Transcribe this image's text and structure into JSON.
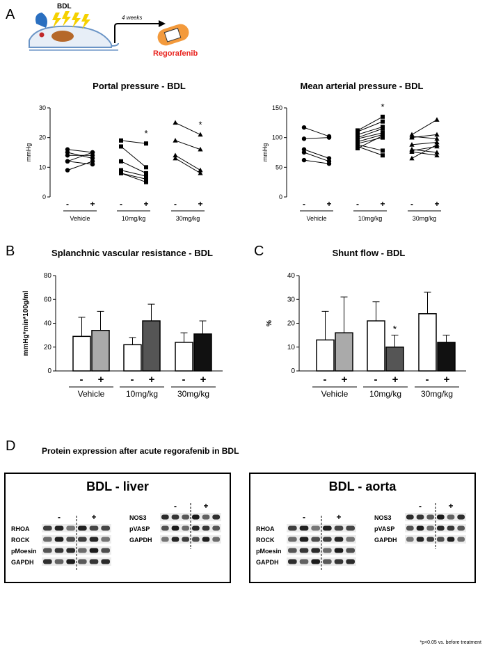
{
  "panels": {
    "a": "A",
    "b": "B",
    "c": "C",
    "d": "D"
  },
  "schematic": {
    "model_label": "BDL",
    "interval_label": "4 weeks",
    "drug_label": "Regorafenib",
    "drug_color": "#e8231e",
    "patch_color": "#f39a3c"
  },
  "groups": [
    "Vehicle",
    "10mg/kg",
    "30mg/kg"
  ],
  "treat_labels": [
    "-",
    "+"
  ],
  "star": "*",
  "chart_data": [
    {
      "id": "portal",
      "type": "paired-line",
      "title": "Portal pressure  - BDL",
      "ylabel": "mmHg",
      "ylim": [
        0,
        30
      ],
      "yticks": [
        0,
        10,
        20,
        30
      ],
      "categories": [
        "Vehicle",
        "10mg/kg",
        "30mg/kg"
      ],
      "markers": [
        "circle",
        "square",
        "triangle"
      ],
      "pairs": [
        [
          [
            16,
            15
          ],
          [
            15,
            13
          ],
          [
            14,
            14
          ],
          [
            12,
            15
          ],
          [
            12,
            11
          ],
          [
            9,
            12
          ]
        ],
        [
          [
            19,
            18
          ],
          [
            17,
            10
          ],
          [
            12,
            8
          ],
          [
            9,
            7
          ],
          [
            8,
            6
          ],
          [
            8,
            5
          ]
        ],
        [
          [
            25,
            21
          ],
          [
            19,
            16
          ],
          [
            14,
            9
          ],
          [
            13,
            8
          ]
        ]
      ],
      "significant": [
        false,
        true,
        true
      ]
    },
    {
      "id": "map",
      "type": "paired-line",
      "title": "Mean arterial pressure - BDL",
      "ylabel": "mmHg",
      "ylim": [
        0,
        150
      ],
      "yticks": [
        0,
        50,
        100,
        150
      ],
      "categories": [
        "Vehicle",
        "10mg/kg",
        "30mg/kg"
      ],
      "markers": [
        "circle",
        "square",
        "triangle"
      ],
      "pairs": [
        [
          [
            117,
            102
          ],
          [
            98,
            100
          ],
          [
            80,
            65
          ],
          [
            75,
            60
          ],
          [
            62,
            56
          ]
        ],
        [
          [
            112,
            135
          ],
          [
            110,
            127
          ],
          [
            105,
            118
          ],
          [
            100,
            115
          ],
          [
            98,
            108
          ],
          [
            93,
            105
          ],
          [
            90,
            100
          ],
          [
            88,
            78
          ],
          [
            85,
            70
          ],
          [
            82,
            103
          ]
        ],
        [
          [
            105,
            130
          ],
          [
            102,
            98
          ],
          [
            100,
            105
          ],
          [
            88,
            92
          ],
          [
            80,
            75
          ],
          [
            78,
            85
          ],
          [
            76,
            70
          ],
          [
            65,
            88
          ]
        ]
      ],
      "significant": [
        false,
        true,
        false
      ]
    },
    {
      "id": "svr",
      "type": "bar",
      "title": "Splanchnic vascular resistance - BDL",
      "ylabel": "mmHg*min*100g/ml",
      "ylim": [
        0,
        80
      ],
      "yticks": [
        0,
        20,
        40,
        60,
        80
      ],
      "categories": [
        "Vehicle",
        "10mg/kg",
        "30mg/kg"
      ],
      "series": [
        {
          "name": "-",
          "values": [
            29,
            22,
            24
          ],
          "errors": [
            16,
            6,
            8
          ],
          "colors": [
            "#ffffff",
            "#ffffff",
            "#ffffff"
          ]
        },
        {
          "name": "+",
          "values": [
            34,
            42,
            31
          ],
          "errors": [
            16,
            14,
            11
          ],
          "colors": [
            "#aaaaaa",
            "#555555",
            "#111111"
          ]
        }
      ],
      "significant": [
        false,
        false,
        false
      ]
    },
    {
      "id": "shunt",
      "type": "bar",
      "title": "Shunt flow - BDL",
      "ylabel": "%",
      "ylim": [
        0,
        40
      ],
      "yticks": [
        0,
        10,
        20,
        30,
        40
      ],
      "categories": [
        "Vehicle",
        "10mg/kg",
        "30mg/kg"
      ],
      "series": [
        {
          "name": "-",
          "values": [
            13,
            21,
            24
          ],
          "errors": [
            12,
            8,
            9
          ],
          "colors": [
            "#ffffff",
            "#ffffff",
            "#ffffff"
          ]
        },
        {
          "name": "+",
          "values": [
            16,
            10,
            12
          ],
          "errors": [
            15,
            5,
            3
          ],
          "colors": [
            "#aaaaaa",
            "#555555",
            "#111111"
          ]
        }
      ],
      "significant": [
        false,
        true,
        false
      ]
    }
  ],
  "protein": {
    "title": "Protein expression  after acute regorafenib in BDL",
    "liver": {
      "title": "BDL - liver",
      "left_labels": [
        "RHOA",
        "ROCK",
        "pMoesin",
        "GAPDH"
      ],
      "right_labels": [
        "NOS3",
        "pVASP",
        "GAPDH"
      ]
    },
    "aorta": {
      "title": "BDL - aorta",
      "left_labels": [
        "RHOA",
        "ROCK",
        "pMoesin",
        "GAPDH"
      ],
      "right_labels": [
        "NOS3",
        "pVASP",
        "GAPDH"
      ]
    }
  },
  "footnote": "*p<0.05 vs. before treatment"
}
